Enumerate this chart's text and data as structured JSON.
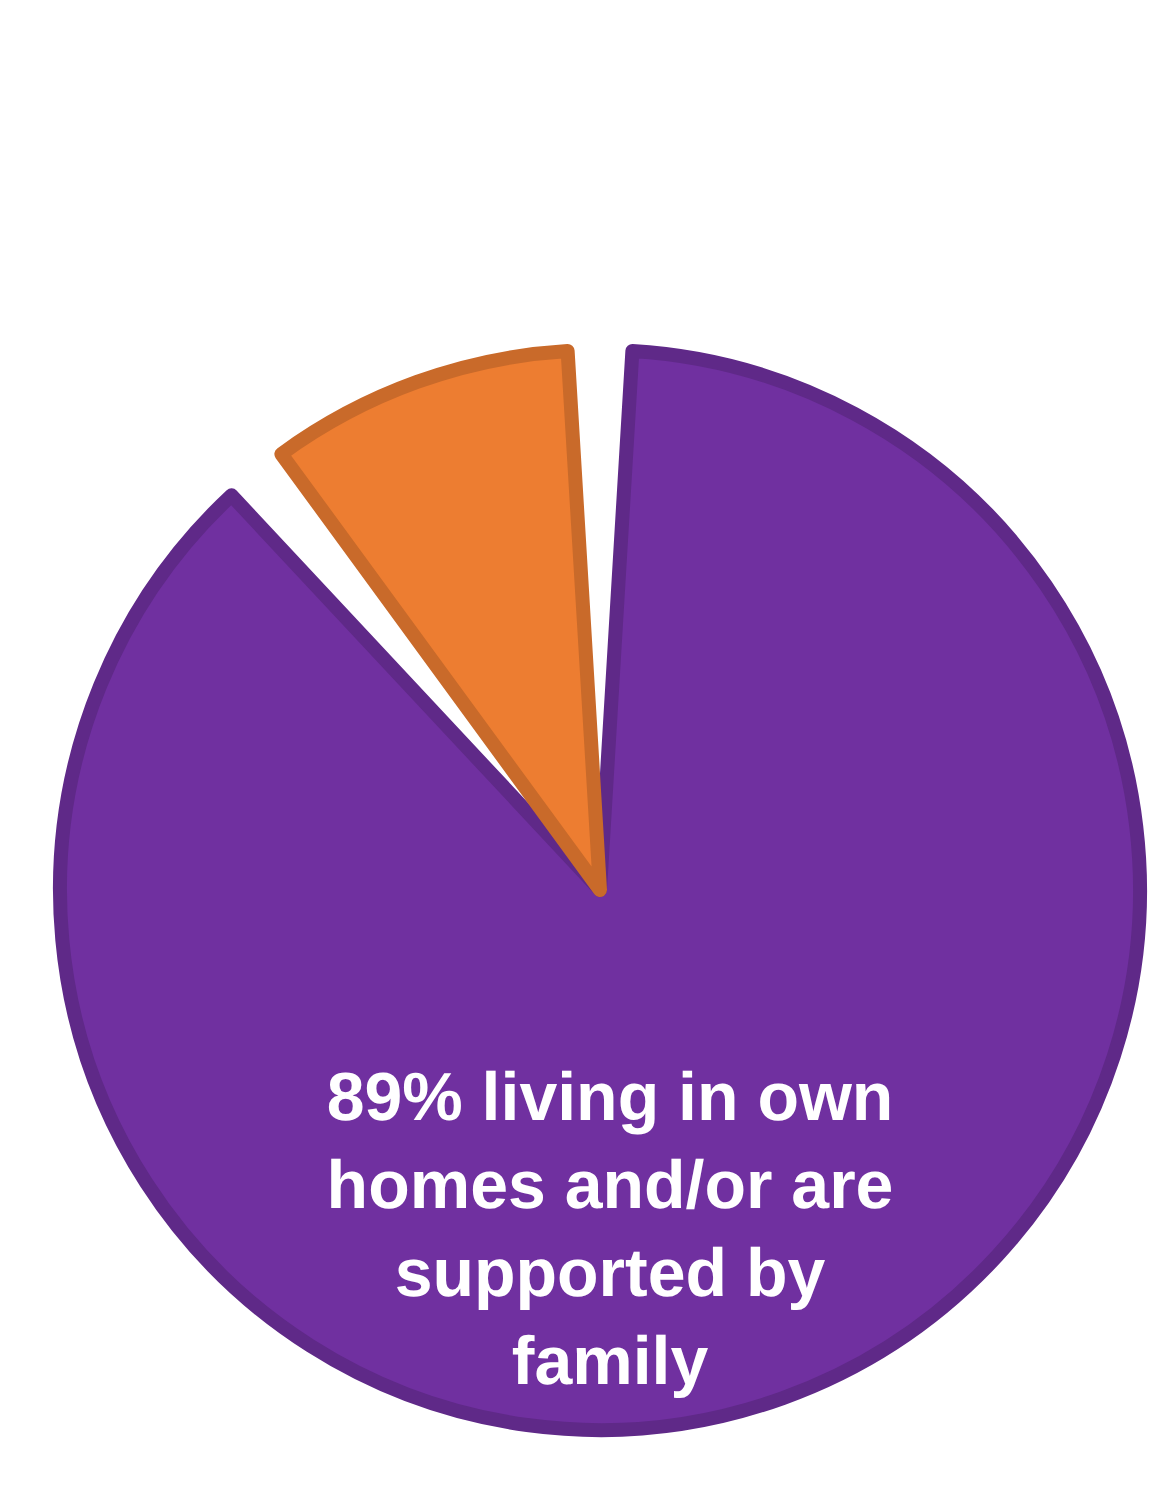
{
  "chart_data": {
    "type": "pie",
    "categories": [
      "89% living in own homes and/or are supported by family",
      null
    ],
    "values": [
      89,
      11
    ],
    "colors": [
      "#7030a0",
      "#ed7d31"
    ]
  }
}
